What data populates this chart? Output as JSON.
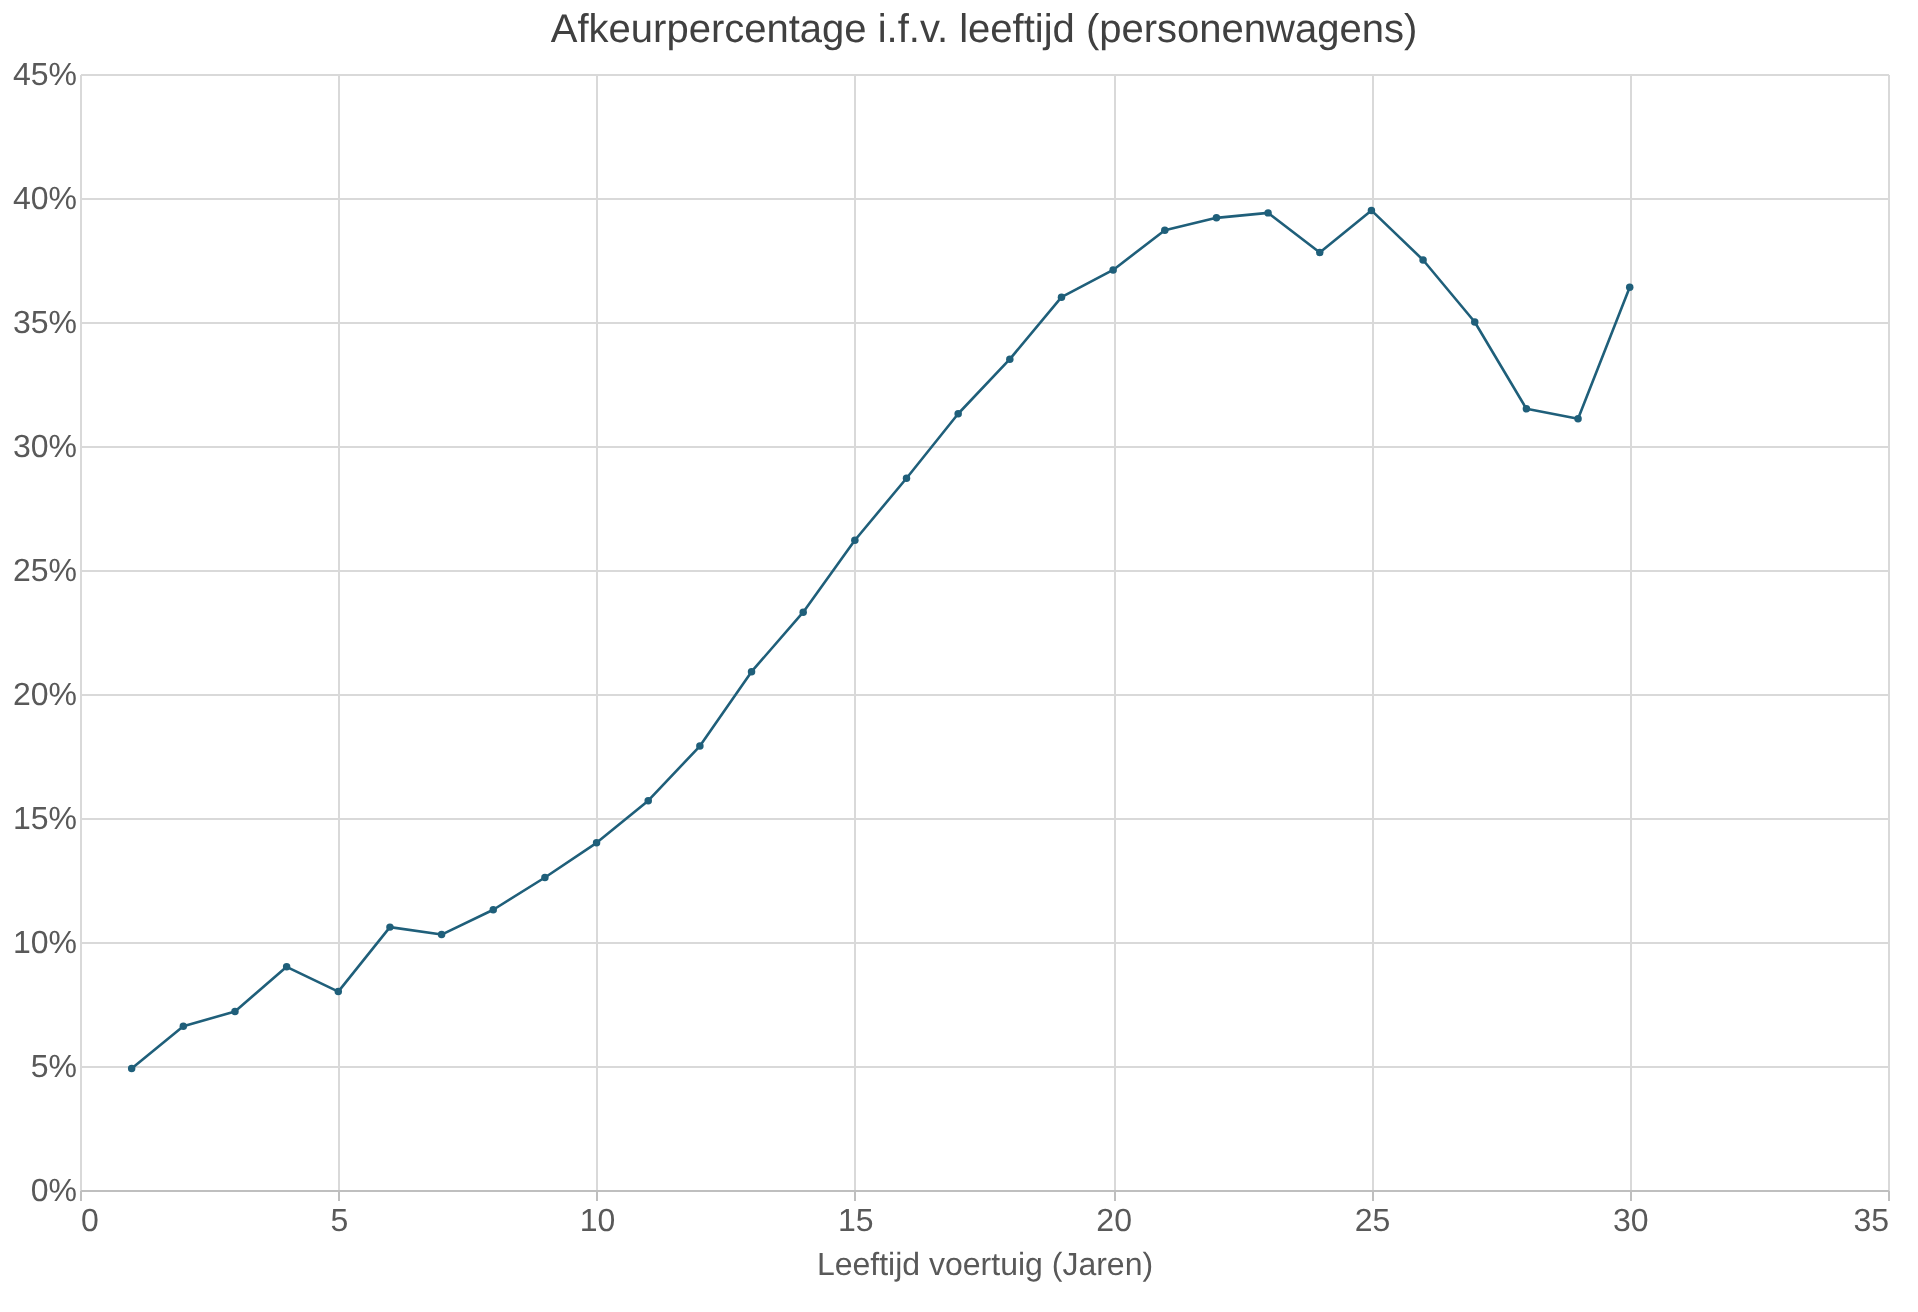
{
  "chart_data": {
    "type": "line",
    "title": "Afkeurpercentage i.f.v. leeftijd  (personenwagens)",
    "xlabel": "Leeftijd voertuig (Jaren)",
    "x": [
      1,
      2,
      3,
      4,
      5,
      6,
      7,
      8,
      9,
      10,
      11,
      12,
      13,
      14,
      15,
      16,
      17,
      18,
      19,
      20,
      21,
      22,
      23,
      24,
      25,
      26,
      27,
      28,
      29,
      30
    ],
    "series": [
      {
        "color": "#1f5f7a",
        "values": [
          4.9,
          6.6,
          7.2,
          9.0,
          8.0,
          10.6,
          10.3,
          11.3,
          12.6,
          14.0,
          15.7,
          17.9,
          20.9,
          23.3,
          26.2,
          28.7,
          31.3,
          33.5,
          36.0,
          37.1,
          38.7,
          39.2,
          39.4,
          37.8,
          39.5,
          37.5,
          35.0,
          31.5,
          31.1,
          36.4
        ]
      }
    ],
    "xlim": [
      0,
      35
    ],
    "xticks": [
      0,
      5,
      10,
      15,
      20,
      25,
      30,
      35
    ],
    "ylim": [
      0,
      45
    ],
    "yticks": [
      {
        "value": 0,
        "label": "0%"
      },
      {
        "value": 5,
        "label": "5%"
      },
      {
        "value": 10,
        "label": "10%"
      },
      {
        "value": 15,
        "label": "15%"
      },
      {
        "value": 20,
        "label": "20%"
      },
      {
        "value": 25,
        "label": "25%"
      },
      {
        "value": 30,
        "label": "30%"
      },
      {
        "value": 35,
        "label": "35%"
      },
      {
        "value": 40,
        "label": "40%"
      },
      {
        "value": 45,
        "label": "45%"
      }
    ],
    "grid": true,
    "marker": "circle",
    "line_style": "solid"
  }
}
